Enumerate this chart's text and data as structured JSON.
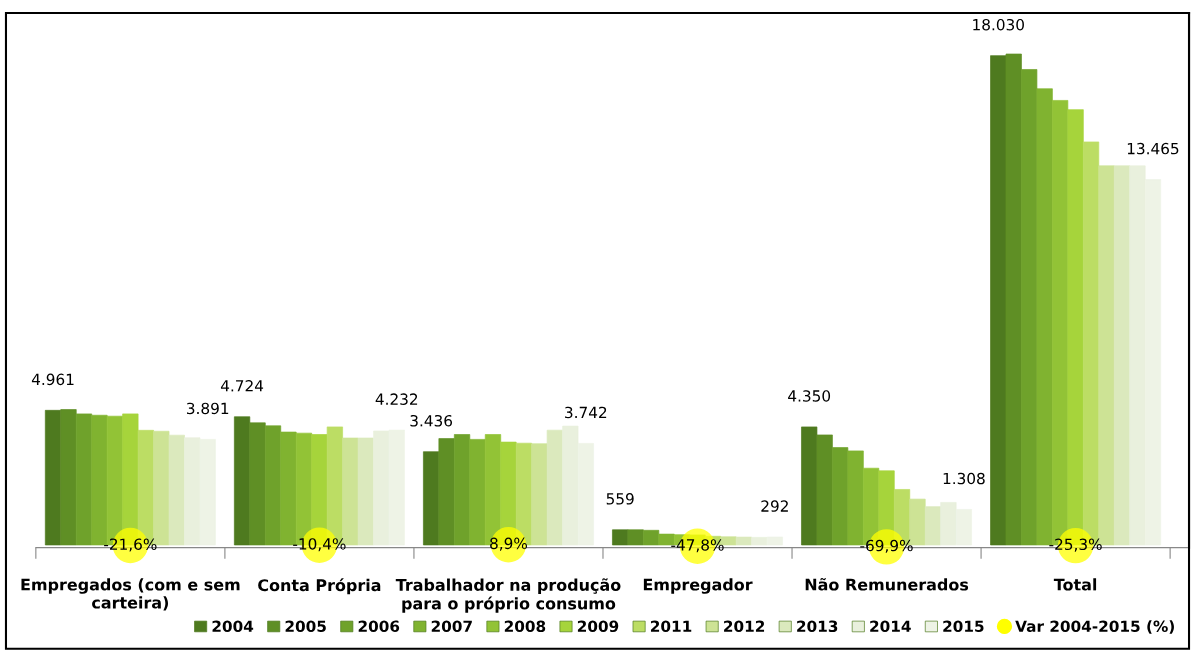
{
  "chart_data": {
    "type": "bar",
    "categories": [
      "Empregados (com e sem\ncarteira)",
      "Conta Própria",
      "Trabalhador na produção\npara o próprio consumo",
      "Empregador",
      "Não Remunerados",
      "Total"
    ],
    "ylim": [
      -100,
      19600
    ],
    "tick_labels": "x",
    "grid": false,
    "legend": "bottom right",
    "series": [
      {
        "name": "2004",
        "color": "#4e7a1f",
        "values": [
          4961,
          4724,
          3436,
          559,
          4350,
          18030
        ],
        "value_labels": [
          "4.961",
          "4.724",
          "3.436",
          "559",
          "4.350",
          "18.030"
        ]
      },
      {
        "name": "2005",
        "color": "#5f8f25",
        "values": [
          4990,
          4500,
          3920,
          559,
          4054,
          18090
        ]
      },
      {
        "name": "2006",
        "color": "#6fa22b",
        "values": [
          4830,
          4390,
          4070,
          540,
          3588,
          17520
        ]
      },
      {
        "name": "2007",
        "color": "#80b330",
        "values": [
          4780,
          4160,
          3890,
          400,
          3466,
          16810
        ]
      },
      {
        "name": "2008",
        "color": "#92c336",
        "values": [
          4745,
          4120,
          4070,
          380,
          2828,
          16380
        ]
      },
      {
        "name": "2009",
        "color": "#a6d43b",
        "values": [
          4830,
          4070,
          3790,
          370,
          2732,
          16040
        ]
      },
      {
        "name": "2011",
        "color": "#bcdd64",
        "values": [
          4225,
          4350,
          3750,
          320,
          2045,
          14850
        ]
      },
      {
        "name": "2012",
        "color": "#cde395",
        "values": [
          4190,
          3940,
          3730,
          300,
          1689,
          13970
        ]
      },
      {
        "name": "2013",
        "color": "#dbe9bd",
        "values": [
          4045,
          3940,
          4230,
          290,
          1410,
          13970
        ]
      },
      {
        "name": "2014",
        "color": "#e9f0dd",
        "values": [
          3950,
          4200,
          4380,
          280,
          1568,
          13970
        ]
      },
      {
        "name": "2015",
        "color": "#eef3e6",
        "values": [
          3891,
          4232,
          3742,
          292,
          1308,
          13465
        ],
        "value_labels": [
          "3.891",
          "4.232",
          "3.742",
          "292",
          "1.308",
          "13.465"
        ]
      },
      {
        "name": "Var 2004-2015 (%)",
        "type": "scatter",
        "marker": "circle",
        "color": "#ffff00",
        "values": [
          -21.6,
          -10.4,
          8.9,
          -47.8,
          -69.9,
          -25.3
        ],
        "value_labels": [
          "-21,6%",
          "-10,4%",
          "8,9%",
          "-47,8%",
          "-69,9%",
          "-25,3%"
        ]
      }
    ]
  }
}
